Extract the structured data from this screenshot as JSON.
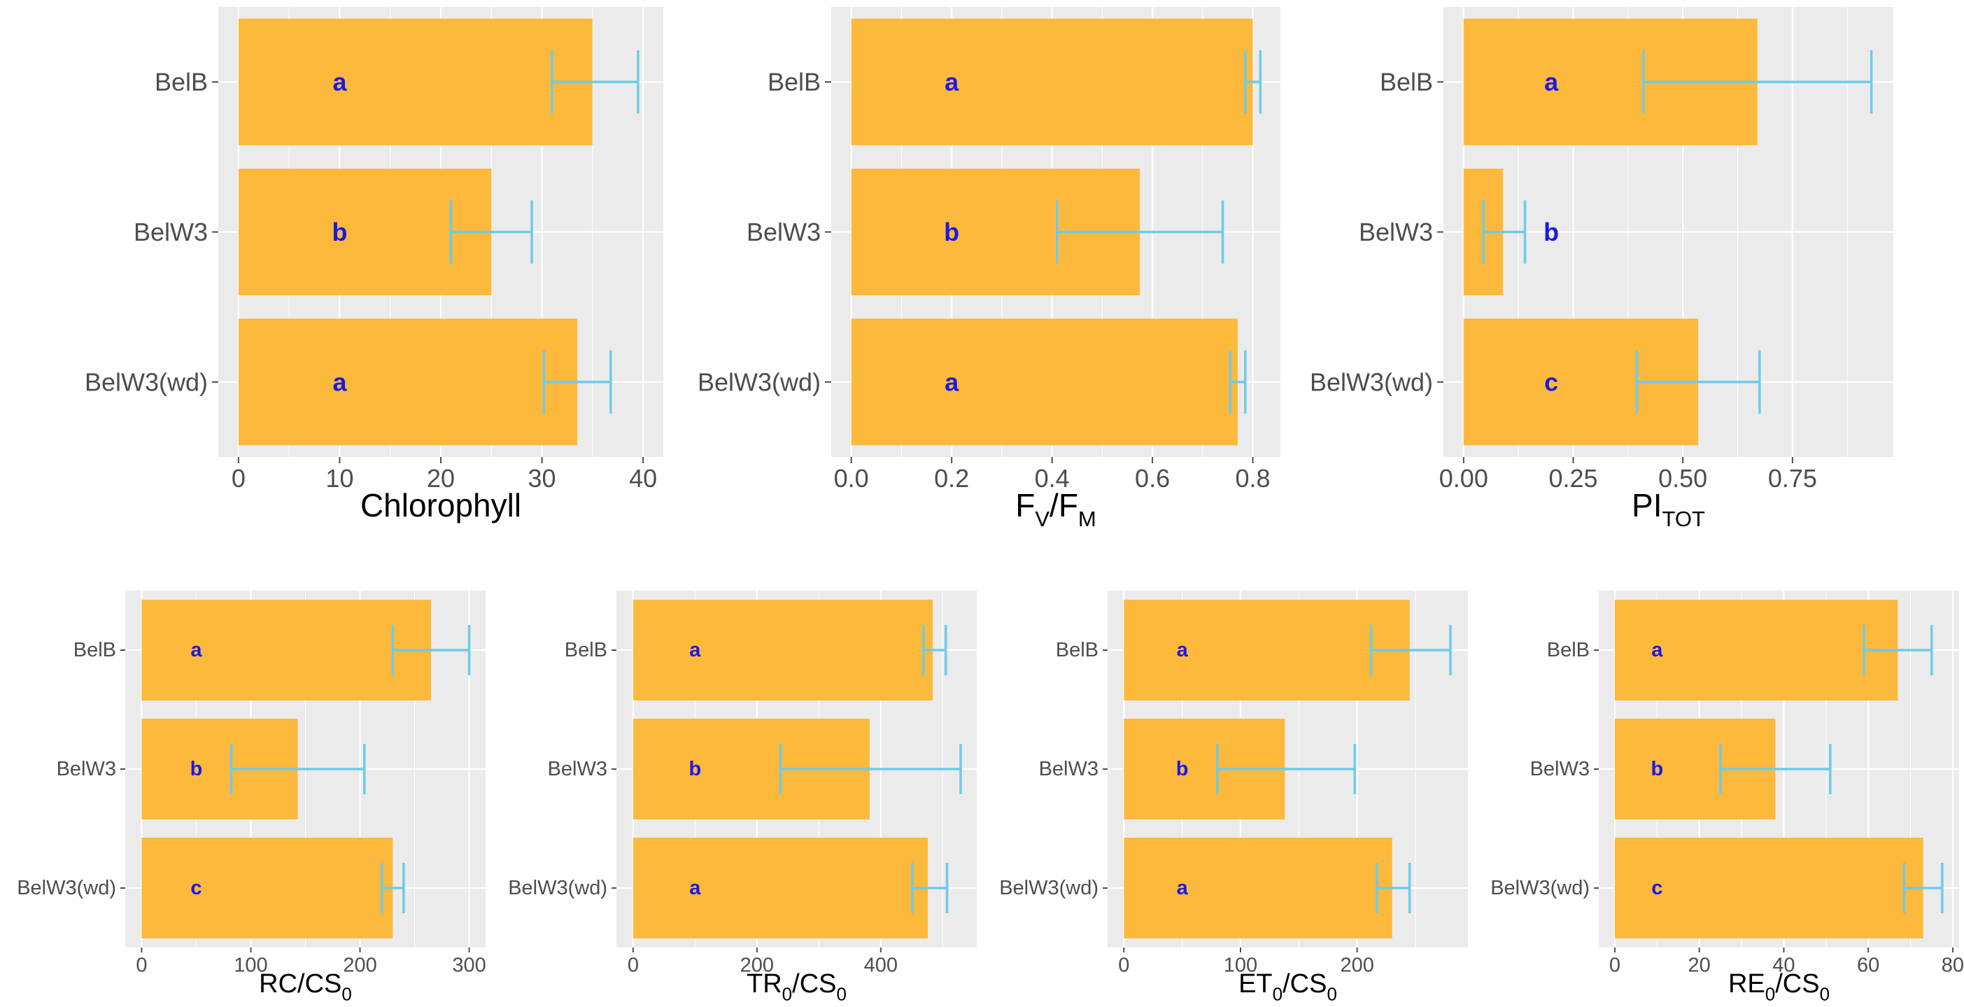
{
  "chart_data": [
    {
      "type": "bar",
      "orientation": "horizontal",
      "categories": [
        "BelB",
        "BelW3",
        "BelW3(wd)"
      ],
      "values": [
        35.0,
        25.0,
        33.5
      ],
      "errors": [
        [
          31.0,
          39.5
        ],
        [
          21.0,
          29.0
        ],
        [
          30.2,
          36.8
        ]
      ],
      "letters": [
        "a",
        "b",
        "a"
      ],
      "xlabel": "Chlorophyll",
      "xlim": [
        -2,
        42
      ],
      "xticks": [
        0,
        10,
        20,
        30,
        40
      ],
      "xtick_labels": [
        "0",
        "10",
        "20",
        "30",
        "40"
      ],
      "grid": true
    },
    {
      "type": "bar",
      "orientation": "horizontal",
      "categories": [
        "BelB",
        "BelW3",
        "BelW3(wd)"
      ],
      "values": [
        0.8,
        0.575,
        0.77
      ],
      "errors": [
        [
          0.785,
          0.815
        ],
        [
          0.41,
          0.74
        ],
        [
          0.755,
          0.785
        ]
      ],
      "letters": [
        "a",
        "b",
        "a"
      ],
      "xlabel": "FV/FM",
      "xlim": [
        -0.04,
        0.855
      ],
      "xticks": [
        0,
        0.2,
        0.4,
        0.6,
        0.8
      ],
      "xtick_labels": [
        "0.0",
        "0.2",
        "0.4",
        "0.6",
        "0.8"
      ],
      "grid": true
    },
    {
      "type": "bar",
      "orientation": "horizontal",
      "categories": [
        "BelB",
        "BelW3",
        "BelW3(wd)"
      ],
      "values": [
        0.67,
        0.09,
        0.535
      ],
      "errors": [
        [
          0.41,
          0.93
        ],
        [
          0.045,
          0.14
        ],
        [
          0.395,
          0.675
        ]
      ],
      "letters": [
        "a",
        "b",
        "c"
      ],
      "xlabel": "PITOT",
      "xlim": [
        -0.046,
        0.98
      ],
      "xticks": [
        0,
        0.25,
        0.5,
        0.75
      ],
      "xtick_labels": [
        "0.00",
        "0.25",
        "0.50",
        "0.75"
      ],
      "grid": true
    },
    {
      "type": "bar",
      "orientation": "horizontal",
      "categories": [
        "BelB",
        "BelW3",
        "BelW3(wd)"
      ],
      "values": [
        265,
        143,
        230
      ],
      "errors": [
        [
          230,
          300
        ],
        [
          82,
          204
        ],
        [
          220,
          240
        ]
      ],
      "letters": [
        "a",
        "b",
        "c"
      ],
      "xlabel": "RC/CS0",
      "xlim": [
        -15,
        315
      ],
      "xticks": [
        0,
        100,
        200,
        300
      ],
      "xtick_labels": [
        "0",
        "100",
        "200",
        "300"
      ],
      "grid": true
    },
    {
      "type": "bar",
      "orientation": "horizontal",
      "categories": [
        "BelB",
        "BelW3",
        "BelW3(wd)"
      ],
      "values": [
        484,
        382,
        476
      ],
      "errors": [
        [
          469,
          505
        ],
        [
          238,
          529
        ],
        [
          451,
          507
        ]
      ],
      "letters": [
        "a",
        "b",
        "a"
      ],
      "xlabel": "TR0/CS0",
      "xlim": [
        -27,
        555
      ],
      "xticks": [
        0,
        200,
        400
      ],
      "xtick_labels": [
        "0",
        "200",
        "400"
      ],
      "grid": true
    },
    {
      "type": "bar",
      "orientation": "horizontal",
      "categories": [
        "BelB",
        "BelW3",
        "BelW3(wd)"
      ],
      "values": [
        245,
        138,
        230
      ],
      "errors": [
        [
          212,
          280
        ],
        [
          80,
          198
        ],
        [
          217,
          245
        ]
      ],
      "letters": [
        "a",
        "b",
        "a"
      ],
      "xlabel": "ET0/CS0",
      "xlim": [
        -14,
        295
      ],
      "xticks": [
        0,
        100,
        200
      ],
      "xtick_labels": [
        "0",
        "100",
        "200"
      ],
      "grid": true
    },
    {
      "type": "bar",
      "orientation": "horizontal",
      "categories": [
        "BelB",
        "BelW3",
        "BelW3(wd)"
      ],
      "values": [
        67,
        38,
        73
      ],
      "errors": [
        [
          59,
          75
        ],
        [
          25,
          51
        ],
        [
          68.5,
          77.5
        ]
      ],
      "letters": [
        "a",
        "b",
        "c"
      ],
      "xlabel": "RE0/CS0",
      "xlim": [
        -3.8,
        81.5
      ],
      "xticks": [
        0,
        20,
        40,
        60,
        80
      ],
      "xtick_labels": [
        "0",
        "20",
        "40",
        "60",
        "80"
      ],
      "grid": true
    }
  ],
  "colors": {
    "bar": "#fdb93c",
    "error_bar": "#6ecbe8",
    "letter": "#1a1ae6",
    "panel_background": "#ebebeb"
  }
}
